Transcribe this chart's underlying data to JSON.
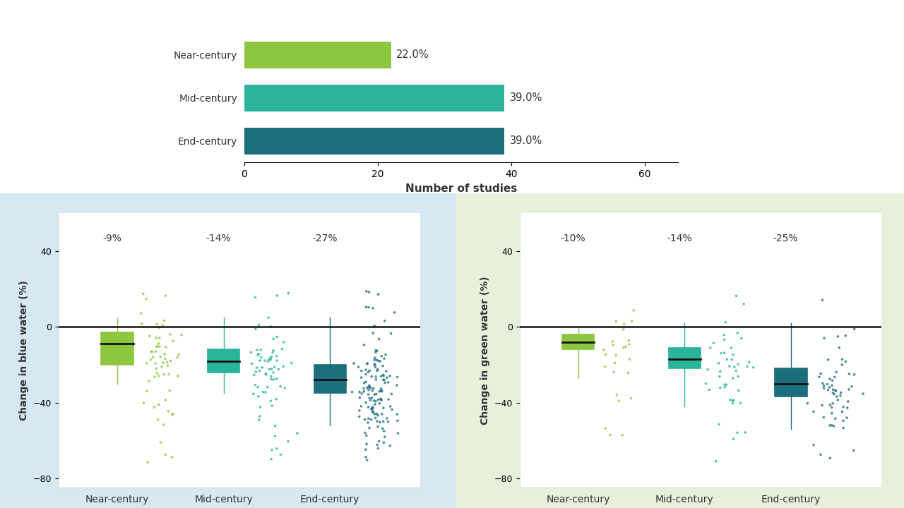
{
  "bar_categories": [
    "Near-century",
    "Mid-century",
    "End-century"
  ],
  "bar_values": [
    22,
    39,
    39
  ],
  "bar_labels": [
    "22.0%",
    "39.0%",
    "39.0%"
  ],
  "bar_colors": [
    "#8dc63f",
    "#2ab59a",
    "#1a6e7e"
  ],
  "bar_xlabel": "Number of studies",
  "bar_xlim": [
    0,
    65
  ],
  "bar_xticks": [
    0,
    20,
    40,
    60
  ],
  "box_categories": [
    "Near-century",
    "Mid-century",
    "End-century"
  ],
  "box_colors": [
    "#8dc63f",
    "#2ab59a",
    "#1a6e7e"
  ],
  "blue_medians": [
    -9,
    -18,
    -28
  ],
  "blue_q1": [
    -20,
    -24,
    -35
  ],
  "blue_q3": [
    -3,
    -12,
    -20
  ],
  "blue_whisker_low": [
    -30,
    -35,
    -52
  ],
  "blue_whisker_high": [
    5,
    5,
    5
  ],
  "blue_labels": [
    "-9%",
    "-14%",
    "-27%"
  ],
  "blue_ylabel": "Change in blue water (%)",
  "blue_ylim": [
    -85,
    60
  ],
  "blue_yticks": [
    -80,
    -40,
    0,
    40
  ],
  "green_medians": [
    -8,
    -17,
    -30
  ],
  "green_q1": [
    -12,
    -22,
    -37
  ],
  "green_q3": [
    -4,
    -11,
    -22
  ],
  "green_whisker_low": [
    -27,
    -42,
    -54
  ],
  "green_whisker_high": [
    0,
    2,
    2
  ],
  "green_labels": [
    "-10%",
    "-14%",
    "-25%"
  ],
  "green_ylabel": "Change in green water (%)",
  "green_ylim": [
    -85,
    60
  ],
  "green_yticks": [
    -80,
    -40,
    0,
    40
  ],
  "bg_left": "#d6e8f2",
  "bg_right": "#e8f0dc",
  "bg_main": "#ffffff",
  "panel_bg": "#ffffff"
}
